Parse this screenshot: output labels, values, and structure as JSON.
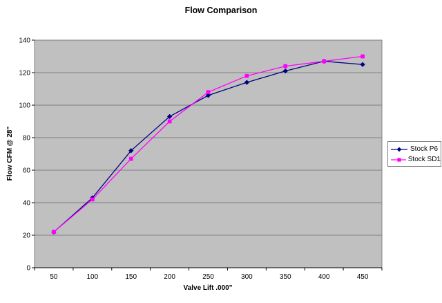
{
  "chart_data": {
    "type": "line",
    "title": "Flow Comparison",
    "xlabel": "Valve Lift .000\"",
    "ylabel": "Flow CFM @ 28\"",
    "categories": [
      50,
      100,
      150,
      200,
      250,
      300,
      350,
      400,
      450
    ],
    "series": [
      {
        "name": "Stock P6",
        "color": "#000080",
        "marker": "diamond",
        "values": [
          22,
          43,
          72,
          93,
          106,
          114,
          121,
          127,
          125
        ]
      },
      {
        "name": "Stock SD1",
        "color": "#FF00FF",
        "marker": "square",
        "values": [
          22,
          42,
          67,
          90,
          108,
          118,
          124,
          127,
          130
        ]
      }
    ],
    "ylim": [
      0,
      140
    ],
    "y_tick_step": 20,
    "grid": true,
    "legend_position": "right",
    "styles": {
      "chart_bg": "#FFFFFF",
      "plot_bg": "#C0C0C0",
      "grid_color": "#808080",
      "axis_color": "#000000",
      "text_color": "#000000",
      "legend_bg": "#FFFFFF",
      "legend_border": "#7F7F7F"
    }
  }
}
